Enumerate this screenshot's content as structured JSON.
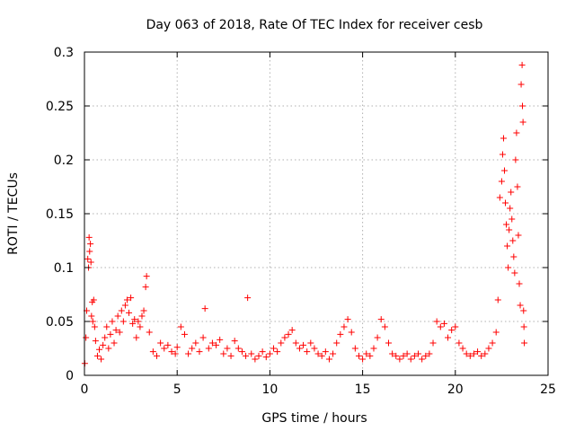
{
  "chart_data": {
    "type": "scatter",
    "title": "Day 063 of 2018, Rate Of TEC Index for receiver cesb",
    "xlabel": "GPS time / hours",
    "ylabel": "ROTI / TECUs",
    "xlim": [
      0,
      25
    ],
    "ylim": [
      0,
      0.3
    ],
    "x_ticks": [
      0,
      5,
      10,
      15,
      20,
      25
    ],
    "x_tick_labels": [
      "0",
      "5",
      "10",
      "15",
      "20",
      "25"
    ],
    "y_ticks": [
      0,
      0.05,
      0.1,
      0.15,
      0.2,
      0.25,
      0.3
    ],
    "y_tick_labels": [
      "0",
      "0.05",
      "0.1",
      "0.15",
      "0.2",
      "0.25",
      "0.3"
    ],
    "grid": true,
    "marker": "+",
    "color": "#ff0000",
    "series": [
      {
        "name": "ROTI",
        "points": [
          [
            0.02,
            0.011
          ],
          [
            0.08,
            0.035
          ],
          [
            0.12,
            0.06
          ],
          [
            0.18,
            0.108
          ],
          [
            0.22,
            0.1
          ],
          [
            0.25,
            0.128
          ],
          [
            0.28,
            0.115
          ],
          [
            0.32,
            0.122
          ],
          [
            0.35,
            0.105
          ],
          [
            0.38,
            0.055
          ],
          [
            0.42,
            0.068
          ],
          [
            0.45,
            0.05
          ],
          [
            0.5,
            0.07
          ],
          [
            0.55,
            0.045
          ],
          [
            0.6,
            0.032
          ],
          [
            0.7,
            0.018
          ],
          [
            0.8,
            0.024
          ],
          [
            0.9,
            0.015
          ],
          [
            1.0,
            0.028
          ],
          [
            1.1,
            0.035
          ],
          [
            1.2,
            0.045
          ],
          [
            1.3,
            0.025
          ],
          [
            1.4,
            0.038
          ],
          [
            1.5,
            0.05
          ],
          [
            1.6,
            0.03
          ],
          [
            1.7,
            0.042
          ],
          [
            1.8,
            0.055
          ],
          [
            1.9,
            0.04
          ],
          [
            2.0,
            0.06
          ],
          [
            2.1,
            0.05
          ],
          [
            2.2,
            0.065
          ],
          [
            2.3,
            0.07
          ],
          [
            2.4,
            0.058
          ],
          [
            2.5,
            0.072
          ],
          [
            2.6,
            0.048
          ],
          [
            2.7,
            0.052
          ],
          [
            2.8,
            0.035
          ],
          [
            2.9,
            0.05
          ],
          [
            3.0,
            0.045
          ],
          [
            3.1,
            0.055
          ],
          [
            3.2,
            0.06
          ],
          [
            3.3,
            0.082
          ],
          [
            3.35,
            0.092
          ],
          [
            3.5,
            0.04
          ],
          [
            3.7,
            0.022
          ],
          [
            3.9,
            0.018
          ],
          [
            4.1,
            0.03
          ],
          [
            4.3,
            0.025
          ],
          [
            4.5,
            0.028
          ],
          [
            4.7,
            0.022
          ],
          [
            4.9,
            0.02
          ],
          [
            5.0,
            0.026
          ],
          [
            5.2,
            0.045
          ],
          [
            5.4,
            0.038
          ],
          [
            5.6,
            0.02
          ],
          [
            5.8,
            0.025
          ],
          [
            6.0,
            0.03
          ],
          [
            6.2,
            0.022
          ],
          [
            6.4,
            0.035
          ],
          [
            6.5,
            0.062
          ],
          [
            6.7,
            0.025
          ],
          [
            6.9,
            0.03
          ],
          [
            7.1,
            0.028
          ],
          [
            7.3,
            0.033
          ],
          [
            7.5,
            0.02
          ],
          [
            7.7,
            0.025
          ],
          [
            7.9,
            0.018
          ],
          [
            8.1,
            0.032
          ],
          [
            8.3,
            0.025
          ],
          [
            8.5,
            0.022
          ],
          [
            8.7,
            0.018
          ],
          [
            8.8,
            0.072
          ],
          [
            9.0,
            0.02
          ],
          [
            9.2,
            0.015
          ],
          [
            9.4,
            0.018
          ],
          [
            9.6,
            0.022
          ],
          [
            9.8,
            0.017
          ],
          [
            10.0,
            0.02
          ],
          [
            10.2,
            0.025
          ],
          [
            10.4,
            0.022
          ],
          [
            10.6,
            0.03
          ],
          [
            10.8,
            0.035
          ],
          [
            11.0,
            0.038
          ],
          [
            11.2,
            0.042
          ],
          [
            11.4,
            0.03
          ],
          [
            11.6,
            0.025
          ],
          [
            11.8,
            0.028
          ],
          [
            12.0,
            0.022
          ],
          [
            12.2,
            0.03
          ],
          [
            12.4,
            0.025
          ],
          [
            12.6,
            0.02
          ],
          [
            12.8,
            0.018
          ],
          [
            13.0,
            0.022
          ],
          [
            13.2,
            0.015
          ],
          [
            13.4,
            0.02
          ],
          [
            13.6,
            0.03
          ],
          [
            13.8,
            0.038
          ],
          [
            14.0,
            0.045
          ],
          [
            14.2,
            0.052
          ],
          [
            14.4,
            0.04
          ],
          [
            14.6,
            0.025
          ],
          [
            14.8,
            0.018
          ],
          [
            15.0,
            0.015
          ],
          [
            15.2,
            0.02
          ],
          [
            15.4,
            0.018
          ],
          [
            15.6,
            0.025
          ],
          [
            15.8,
            0.035
          ],
          [
            16.0,
            0.052
          ],
          [
            16.2,
            0.045
          ],
          [
            16.4,
            0.03
          ],
          [
            16.6,
            0.02
          ],
          [
            16.8,
            0.018
          ],
          [
            17.0,
            0.015
          ],
          [
            17.2,
            0.018
          ],
          [
            17.4,
            0.02
          ],
          [
            17.6,
            0.015
          ],
          [
            17.8,
            0.018
          ],
          [
            18.0,
            0.02
          ],
          [
            18.2,
            0.015
          ],
          [
            18.4,
            0.018
          ],
          [
            18.6,
            0.02
          ],
          [
            18.8,
            0.03
          ],
          [
            19.0,
            0.05
          ],
          [
            19.2,
            0.045
          ],
          [
            19.4,
            0.048
          ],
          [
            19.6,
            0.035
          ],
          [
            19.8,
            0.042
          ],
          [
            20.0,
            0.045
          ],
          [
            20.2,
            0.03
          ],
          [
            20.4,
            0.025
          ],
          [
            20.6,
            0.02
          ],
          [
            20.8,
            0.018
          ],
          [
            21.0,
            0.02
          ],
          [
            21.2,
            0.022
          ],
          [
            21.4,
            0.018
          ],
          [
            21.6,
            0.02
          ],
          [
            21.8,
            0.025
          ],
          [
            22.0,
            0.03
          ],
          [
            22.2,
            0.04
          ],
          [
            22.3,
            0.07
          ],
          [
            22.4,
            0.165
          ],
          [
            22.5,
            0.18
          ],
          [
            22.55,
            0.205
          ],
          [
            22.6,
            0.22
          ],
          [
            22.65,
            0.19
          ],
          [
            22.7,
            0.16
          ],
          [
            22.75,
            0.14
          ],
          [
            22.8,
            0.12
          ],
          [
            22.85,
            0.1
          ],
          [
            22.9,
            0.135
          ],
          [
            22.95,
            0.155
          ],
          [
            23.0,
            0.17
          ],
          [
            23.05,
            0.145
          ],
          [
            23.1,
            0.125
          ],
          [
            23.15,
            0.11
          ],
          [
            23.2,
            0.095
          ],
          [
            23.25,
            0.2
          ],
          [
            23.3,
            0.225
          ],
          [
            23.35,
            0.175
          ],
          [
            23.4,
            0.13
          ],
          [
            23.45,
            0.085
          ],
          [
            23.5,
            0.065
          ],
          [
            23.55,
            0.27
          ],
          [
            23.6,
            0.288
          ],
          [
            23.62,
            0.25
          ],
          [
            23.65,
            0.235
          ],
          [
            23.68,
            0.06
          ],
          [
            23.7,
            0.045
          ],
          [
            23.72,
            0.03
          ]
        ]
      }
    ]
  }
}
